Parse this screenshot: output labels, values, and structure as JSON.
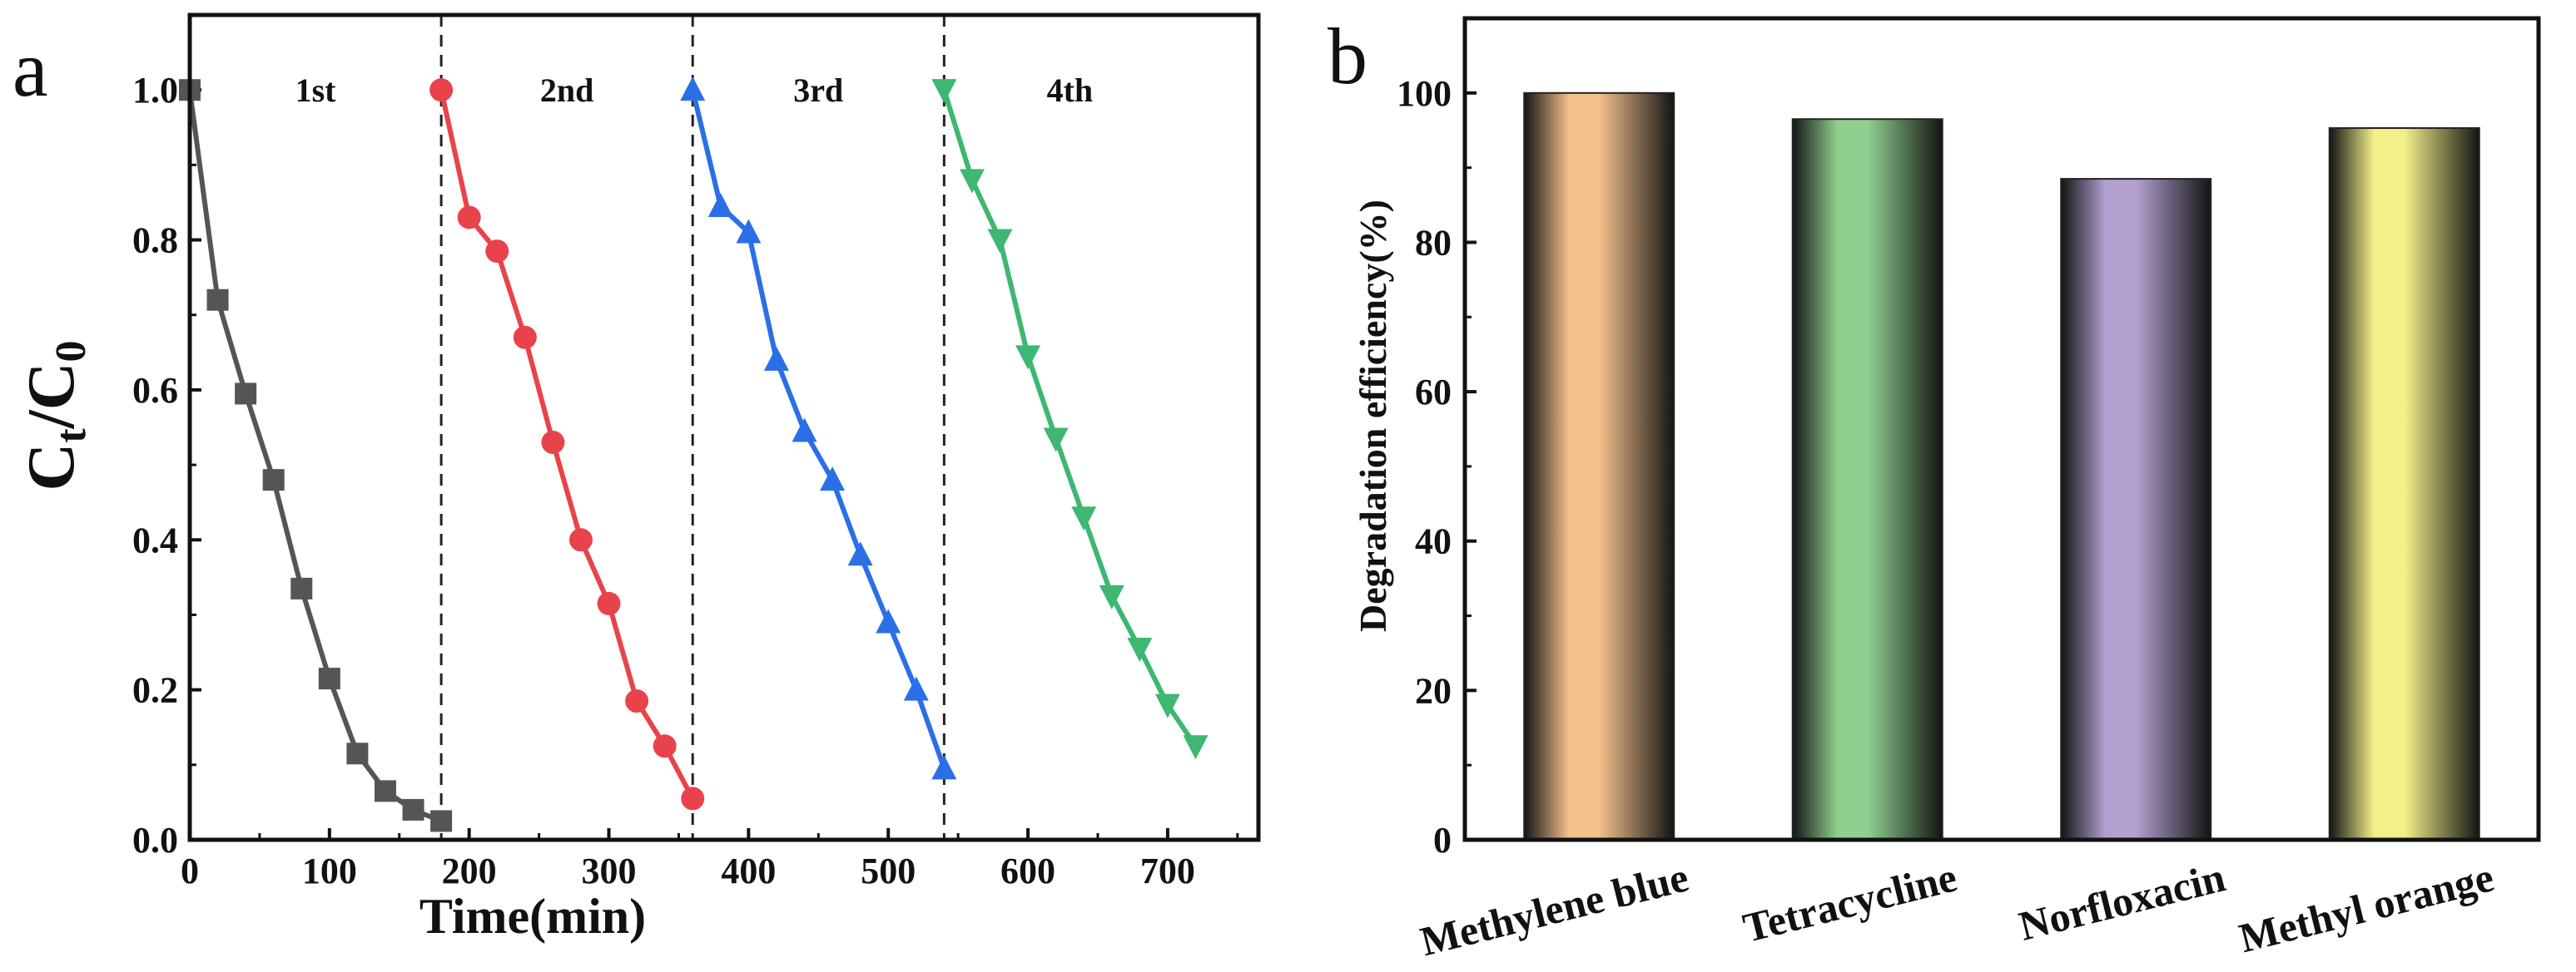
{
  "chart_data": [
    {
      "panel": "a",
      "type": "line",
      "xlabel": "Time(min)",
      "ylabel_main": "C",
      "ylabel_sub_t": "t",
      "ylabel_slash": "/C",
      "ylabel_sub_0": "0",
      "xlim": [
        0,
        765
      ],
      "ylim": [
        0,
        1.1
      ],
      "xticks": [
        0,
        100,
        200,
        300,
        400,
        500,
        600,
        700
      ],
      "yticks": [
        0.0,
        0.2,
        0.4,
        0.6,
        0.8,
        1.0
      ],
      "ytick_labels": [
        "0.0",
        "0.2",
        "0.4",
        "0.6",
        "0.8",
        "1.0"
      ],
      "dividers": [
        180,
        360,
        540
      ],
      "cycle_labels": [
        {
          "text": "1st",
          "x": 90
        },
        {
          "text": "2nd",
          "x": 270
        },
        {
          "text": "3rd",
          "x": 450
        },
        {
          "text": "4th",
          "x": 630
        }
      ],
      "series": [
        {
          "name": "1st",
          "color": "#555555",
          "marker": "square",
          "x": [
            0,
            20,
            40,
            60,
            80,
            100,
            120,
            140,
            160,
            180
          ],
          "y": [
            1.0,
            0.72,
            0.595,
            0.48,
            0.335,
            0.215,
            0.115,
            0.065,
            0.04,
            0.025
          ]
        },
        {
          "name": "2nd",
          "color": "#e8434b",
          "marker": "circle",
          "x": [
            180,
            200,
            220,
            240,
            260,
            280,
            300,
            320,
            340,
            360
          ],
          "y": [
            1.0,
            0.83,
            0.785,
            0.67,
            0.53,
            0.4,
            0.315,
            0.185,
            0.125,
            0.055
          ]
        },
        {
          "name": "3rd",
          "color": "#2b6fe6",
          "marker": "triangle-up",
          "x": [
            360,
            380,
            400,
            420,
            440,
            460,
            480,
            500,
            520,
            540
          ],
          "y": [
            1.0,
            0.845,
            0.81,
            0.64,
            0.545,
            0.48,
            0.38,
            0.29,
            0.2,
            0.095
          ]
        },
        {
          "name": "4th",
          "color": "#3db771",
          "marker": "triangle-down",
          "x": [
            540,
            560,
            580,
            600,
            620,
            640,
            660,
            680,
            700,
            720
          ],
          "y": [
            1.0,
            0.88,
            0.8,
            0.645,
            0.535,
            0.43,
            0.325,
            0.255,
            0.18,
            0.125
          ]
        }
      ]
    },
    {
      "panel": "b",
      "type": "bar",
      "ylabel": "Degradation efficiency(%)",
      "ylim": [
        0,
        110
      ],
      "yticks": [
        0,
        20,
        40,
        60,
        80,
        100
      ],
      "ytick_labels": [
        "0",
        "20",
        "40",
        "60",
        "80",
        "100"
      ],
      "categories": [
        "Methylene blue",
        "Tetracycline",
        "Norfloxacin",
        "Methyl orange"
      ],
      "values": [
        100,
        96.5,
        88.5,
        95.3
      ],
      "colors": [
        "#f4c08c",
        "#8fd08f",
        "#b3a0d0",
        "#f3f08a"
      ]
    }
  ]
}
